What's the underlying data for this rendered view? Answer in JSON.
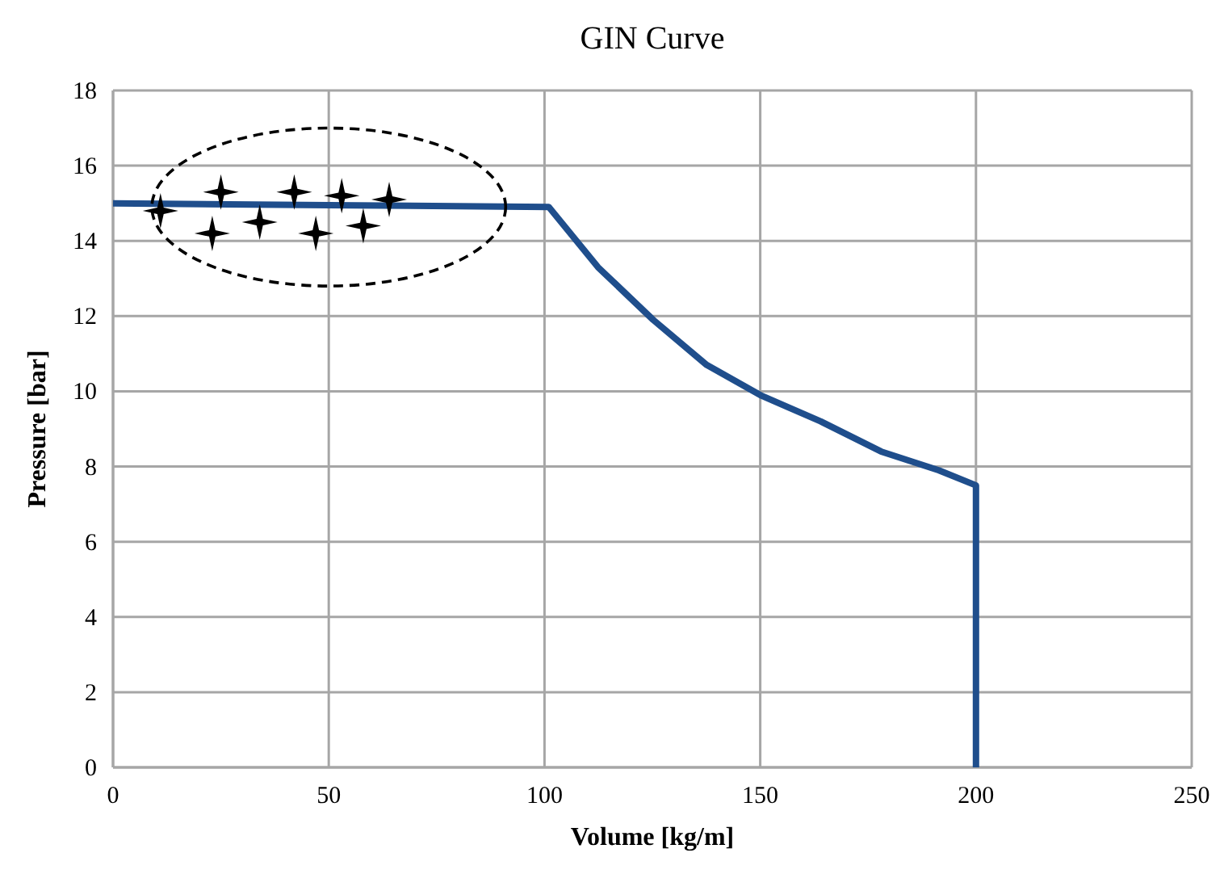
{
  "chart_data": {
    "type": "line",
    "title": "GIN Curve",
    "xlabel": "Volume [kg/m]",
    "ylabel": "Pressure [bar]",
    "x": [
      0,
      50,
      101,
      112.4,
      125.2,
      137.6,
      150,
      164,
      178,
      191.4,
      200,
      200
    ],
    "series": [
      {
        "color": "#1f4e8c",
        "values": [
          15,
          14.95,
          14.9,
          13.3,
          11.9,
          10.7,
          9.9,
          9.2,
          8.4,
          7.9,
          7.5,
          0
        ]
      }
    ],
    "xlim": [
      0,
      250
    ],
    "xticks": [
      0,
      50,
      100,
      150,
      200,
      250
    ],
    "ylim": [
      0,
      18
    ],
    "yticks": [
      0,
      2,
      4,
      6,
      8,
      10,
      12,
      14,
      16,
      18
    ],
    "grid": true,
    "marker": "none",
    "line_style": "solid"
  }
}
